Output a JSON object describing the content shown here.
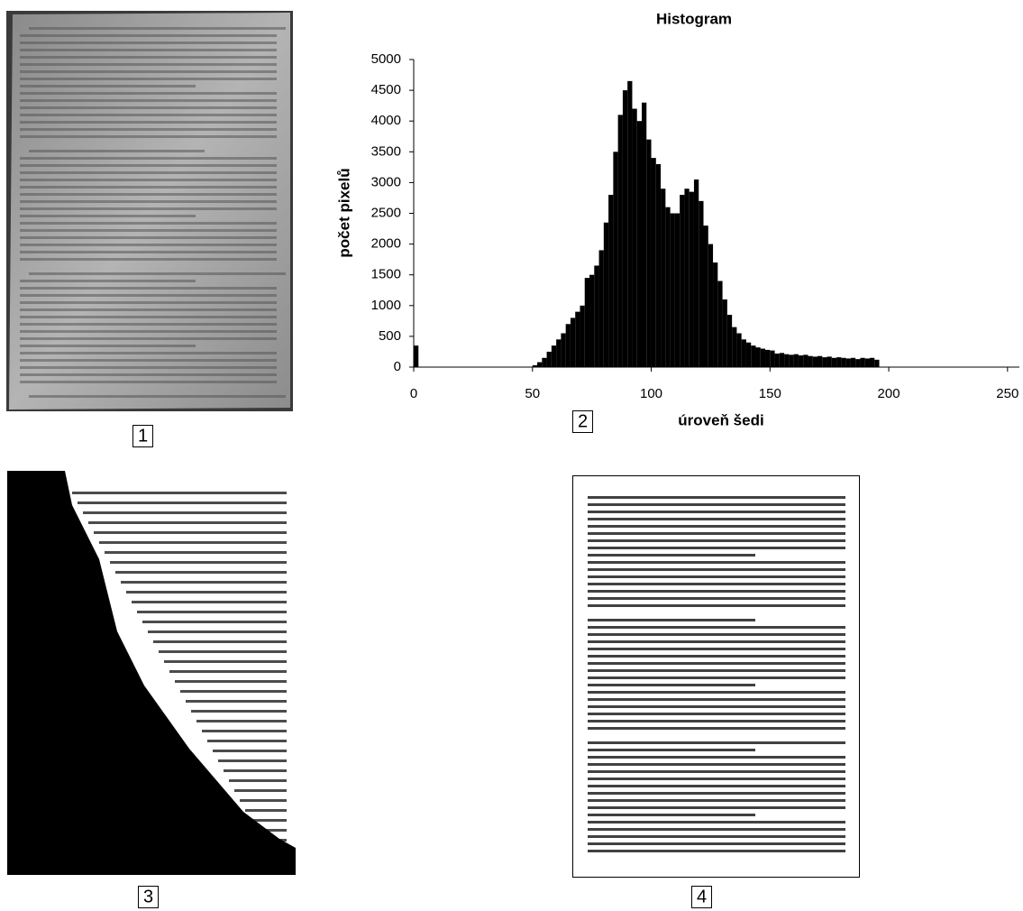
{
  "panel_labels": [
    "1",
    "2",
    "3",
    "4"
  ],
  "chart_data": {
    "type": "histogram",
    "title": "Histogram",
    "x_label": "úroveň šedi",
    "y_label": "počet pixelů",
    "color": "#000000",
    "bins": [
      0,
      2,
      4,
      6,
      8,
      10,
      12,
      14,
      16,
      18,
      20,
      22,
      24,
      26,
      28,
      30,
      32,
      34,
      36,
      38,
      40,
      42,
      44,
      46,
      48,
      50,
      52,
      54,
      56,
      58,
      60,
      62,
      64,
      66,
      68,
      70,
      72,
      74,
      76,
      78,
      80,
      82,
      84,
      86,
      88,
      90,
      92,
      94,
      96,
      98,
      100,
      102,
      104,
      106,
      108,
      110,
      112,
      114,
      116,
      118,
      120,
      122,
      124,
      126,
      128,
      130,
      132,
      134,
      136,
      138,
      140,
      142,
      144,
      146,
      148,
      150,
      152,
      154,
      156,
      158,
      160,
      162,
      164,
      166,
      168,
      170,
      172,
      174,
      176,
      178,
      180,
      182,
      184,
      186,
      188,
      190,
      192,
      194,
      196
    ],
    "values": [
      350,
      0,
      0,
      0,
      0,
      0,
      0,
      0,
      0,
      0,
      0,
      0,
      0,
      0,
      0,
      0,
      0,
      0,
      0,
      0,
      0,
      0,
      0,
      0,
      0,
      30,
      80,
      150,
      250,
      350,
      450,
      550,
      700,
      800,
      900,
      1000,
      1450,
      1500,
      1650,
      1900,
      2350,
      2800,
      3500,
      4100,
      4500,
      4650,
      4200,
      4000,
      4300,
      3700,
      3400,
      3300,
      2900,
      2600,
      2500,
      2500,
      2800,
      2900,
      2850,
      3050,
      2700,
      2300,
      2000,
      1700,
      1400,
      1100,
      850,
      650,
      550,
      450,
      400,
      350,
      320,
      300,
      280,
      270,
      220,
      230,
      210,
      200,
      210,
      190,
      200,
      180,
      170,
      180,
      160,
      170,
      150,
      160,
      150,
      140,
      150,
      130,
      150,
      140,
      150,
      120
    ],
    "xlim": [
      0,
      255
    ],
    "xticks": [
      0,
      50,
      100,
      150,
      200,
      250
    ],
    "ylim": [
      0,
      5000
    ],
    "yticks": [
      0,
      500,
      1000,
      1500,
      2000,
      2500,
      3000,
      3500,
      4000,
      4500,
      5000
    ]
  }
}
